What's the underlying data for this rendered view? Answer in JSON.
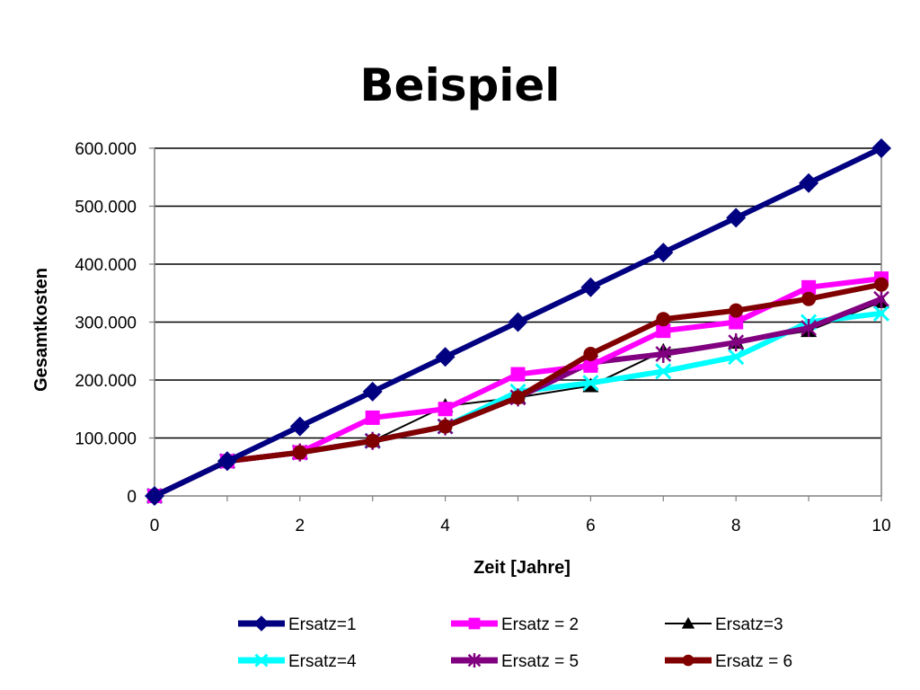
{
  "chart_data": {
    "type": "line",
    "title": "Beispiel",
    "xlabel": "Zeit [Jahre]",
    "ylabel": "Gesamtkosten",
    "xlim": [
      0,
      10
    ],
    "ylim": [
      0,
      600000
    ],
    "x_ticks": [
      0,
      2,
      4,
      6,
      8,
      10
    ],
    "x_tick_labels": [
      "0",
      "2",
      "4",
      "6",
      "8",
      "10"
    ],
    "y_ticks": [
      0,
      100000,
      200000,
      300000,
      400000,
      500000,
      600000
    ],
    "y_tick_labels": [
      "0",
      "100.000",
      "200.000",
      "300.000",
      "400.000",
      "500.000",
      "600.000"
    ],
    "grid": "horizontal",
    "legend_position": "bottom",
    "x": [
      0,
      1,
      2,
      3,
      4,
      5,
      6,
      7,
      8,
      9,
      10
    ],
    "series": [
      {
        "name": "Ersatz=1",
        "color": "#000080",
        "marker": "diamond",
        "line": "thick",
        "values": [
          0,
          60000,
          120000,
          180000,
          240000,
          300000,
          360000,
          420000,
          480000,
          540000,
          600000
        ]
      },
      {
        "name": "Ersatz = 2",
        "color": "#FF00FF",
        "marker": "square",
        "line": "thick",
        "values": [
          0,
          60000,
          75000,
          135000,
          150000,
          210000,
          225000,
          285000,
          300000,
          360000,
          375000
        ]
      },
      {
        "name": "Ersatz=3",
        "color": "#000000",
        "marker": "triangle",
        "line": "thin",
        "values": [
          0,
          60000,
          75000,
          95000,
          155000,
          170000,
          190000,
          250000,
          265000,
          285000,
          335000
        ]
      },
      {
        "name": "Ersatz=4",
        "color": "#00FFFF",
        "marker": "x",
        "line": "thick",
        "values": [
          0,
          60000,
          75000,
          95000,
          120000,
          180000,
          195000,
          215000,
          240000,
          300000,
          315000
        ]
      },
      {
        "name": "Ersatz = 5",
        "color": "#800080",
        "marker": "star",
        "line": "thick",
        "values": [
          0,
          60000,
          75000,
          95000,
          120000,
          170000,
          230000,
          245000,
          265000,
          290000,
          340000
        ]
      },
      {
        "name": "Ersatz = 6",
        "color": "#800000",
        "marker": "circle",
        "line": "thick",
        "values": [
          0,
          60000,
          75000,
          95000,
          120000,
          170000,
          245000,
          305000,
          320000,
          340000,
          365000
        ]
      }
    ]
  }
}
